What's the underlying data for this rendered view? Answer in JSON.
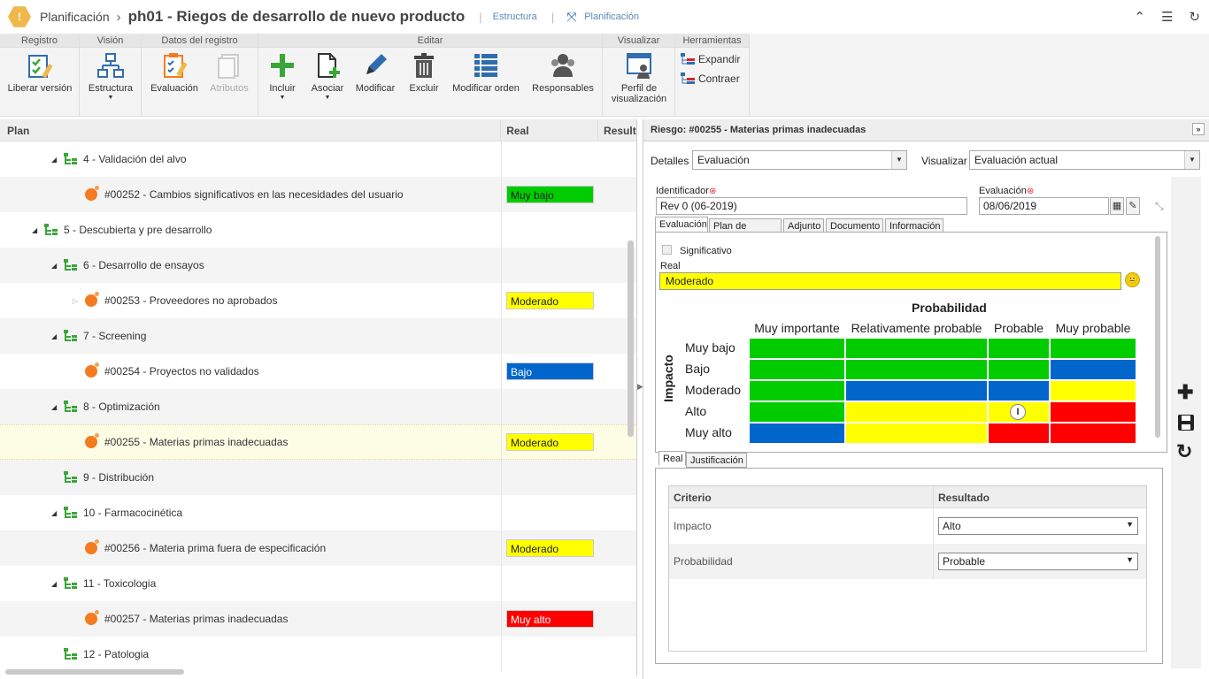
{
  "header": {
    "app": "Planificación",
    "separator": "›",
    "title": "ph01 - Riegos de desarrollo de nuevo producto",
    "link_structure": "Estructura",
    "link_planning": "Planificación"
  },
  "ribbon": {
    "groups": {
      "registro": "Registro",
      "vision": "Visión",
      "datos": "Datos del registro",
      "editar": "Editar",
      "visualizar": "Visualizar",
      "herramientas": "Herramientas"
    },
    "buttons": {
      "liberar": "Liberar versión",
      "estructura": "Estructura",
      "evaluacion": "Evaluación",
      "atributos": "Atributos",
      "incluir": "Incluir",
      "asociar": "Asociar",
      "modificar": "Modificar",
      "excluir": "Excluir",
      "modificar_orden": "Modificar orden",
      "responsables": "Responsables",
      "perfil_1": "Perfil de",
      "perfil_2": "visualización",
      "expandir": "Expandir",
      "contraer": "Contraer"
    }
  },
  "plan_table": {
    "columns": {
      "plan": "Plan",
      "real": "Real",
      "result": "Result"
    },
    "rows": [
      {
        "label": "4 - Validación del alvo",
        "real": ""
      },
      {
        "label": "#00252 - Cambios significativos en las necesidades del usuario",
        "real": "Muy bajo"
      },
      {
        "label": "5 - Descubierta y pre desarrollo",
        "real": ""
      },
      {
        "label": "6 - Desarrollo de ensayos",
        "real": ""
      },
      {
        "label": "#00253 - Proveedores no aprobados",
        "real": "Moderado"
      },
      {
        "label": "7 - Screening",
        "real": ""
      },
      {
        "label": "#00254 - Proyectos no validados",
        "real": "Bajo"
      },
      {
        "label": "8 - Optimización",
        "real": ""
      },
      {
        "label": "#00255 - Materias primas inadecuadas",
        "real": "Moderado"
      },
      {
        "label": "9 - Distribución",
        "real": ""
      },
      {
        "label": "10 - Farmacocinética",
        "real": ""
      },
      {
        "label": "#00256 - Materia prima fuera de especificación",
        "real": "Moderado"
      },
      {
        "label": "11 - Toxicologia",
        "real": ""
      },
      {
        "label": "#00257 - Materias primas inadecuadas",
        "real": "Muy alto"
      },
      {
        "label": "12 - Patologia",
        "real": ""
      }
    ]
  },
  "risk_panel": {
    "title": "Riesgo: #00255 - Materias primas inadecuadas",
    "detalles_label": "Detalles",
    "detalles_value": "Evaluación",
    "visualizar_label": "Visualizar",
    "visualizar_value": "Evaluación actual",
    "identificador_label": "Identificador",
    "identificador_value": "Rev 0 (06-2019)",
    "evaluacion_label": "Evaluación",
    "evaluacion_value": "08/06/2019",
    "required_mark": "⊛",
    "tabs": [
      "Evaluación",
      "Plan de acción",
      "Adjunto",
      "Documento",
      "Información"
    ],
    "significativo": "Significativo",
    "real_label": "Real",
    "real_value": "Moderado",
    "matrix": {
      "probability_title": "Probabilidad",
      "impact_title": "Impacto",
      "columns": [
        "Muy importante",
        "Relativamente probable",
        "Probable",
        "Muy probable"
      ],
      "rows": [
        "Muy bajo",
        "Bajo",
        "Moderado",
        "Alto",
        "Muy alto"
      ],
      "marker": "I"
    },
    "sub_tabs": [
      "Real",
      "Justificación"
    ],
    "criteria": {
      "col_criterio": "Criterio",
      "col_resultado": "Resultado",
      "rows": [
        {
          "criterio": "Impacto",
          "resultado": "Alto"
        },
        {
          "criterio": "Probabilidad",
          "resultado": "Probable"
        }
      ]
    }
  },
  "colors": {
    "green": "#00cc00",
    "yellow": "#ffff00",
    "blue": "#0066cc",
    "red": "#ff0000",
    "accent": "#f0b74b"
  }
}
